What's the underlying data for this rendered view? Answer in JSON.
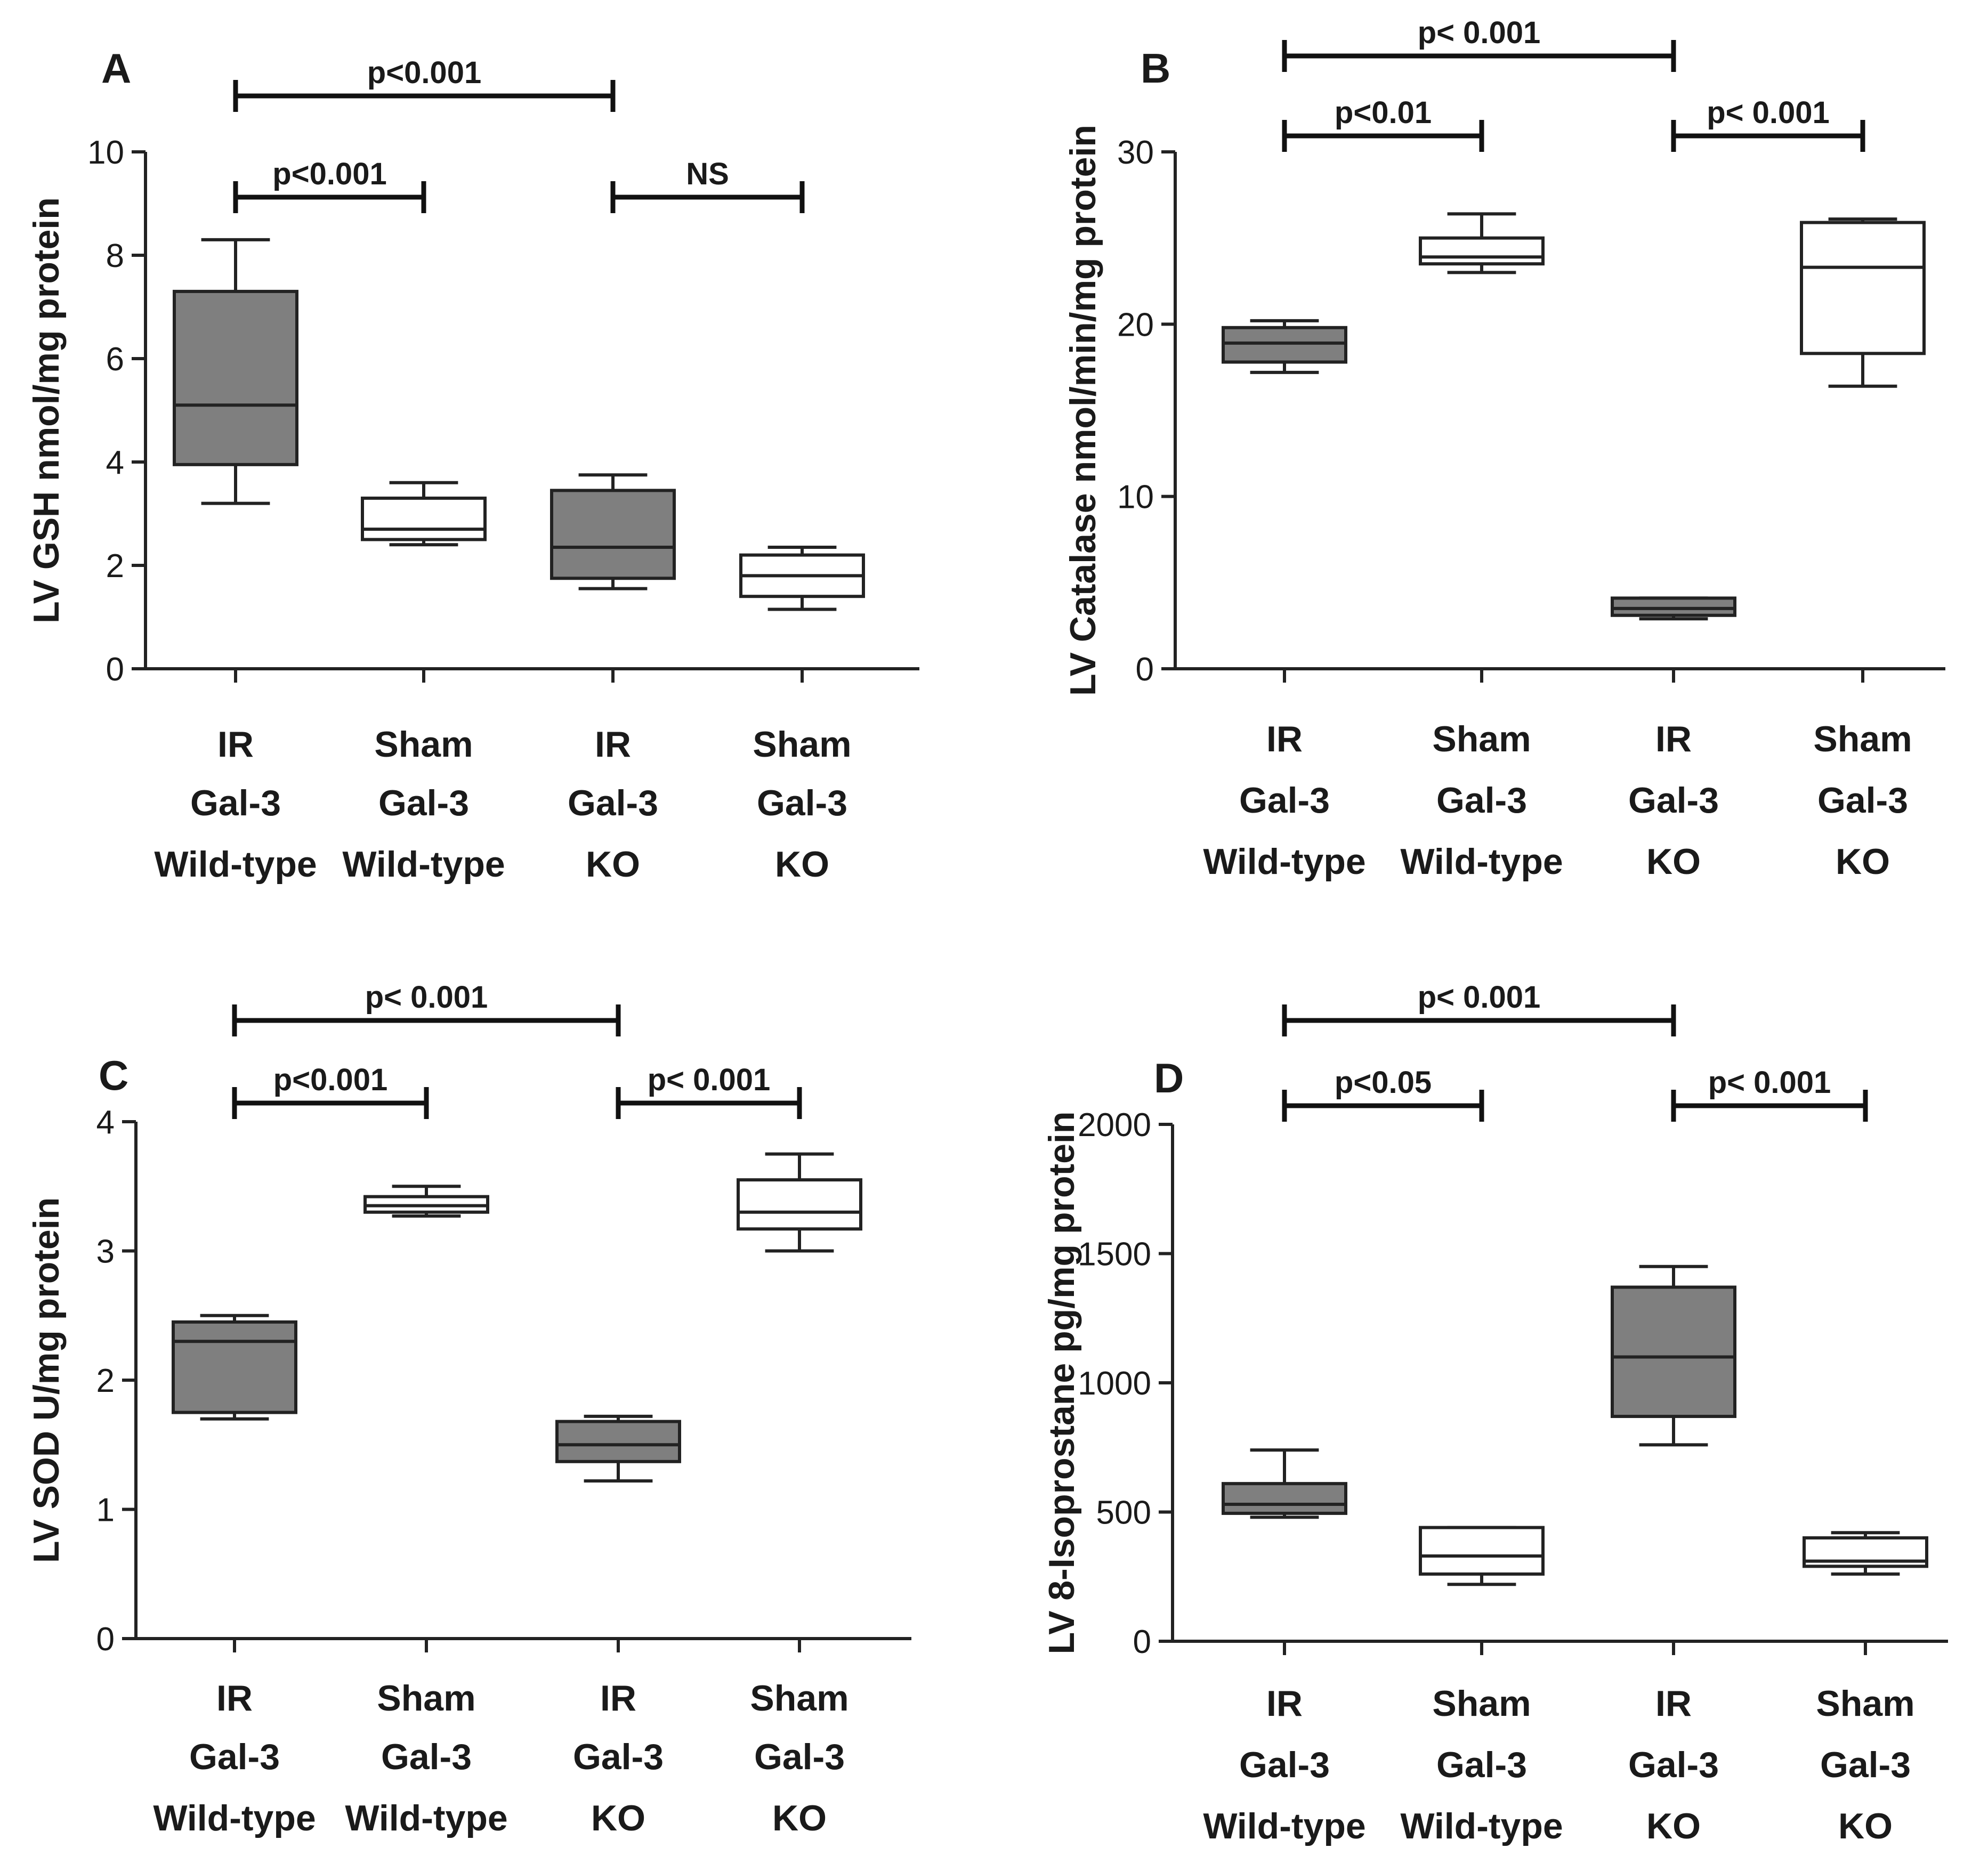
{
  "chart_data": [
    {
      "type": "boxplot",
      "panel_label": "A",
      "ylabel": "LV GSH nmol/mg protein",
      "ylim": [
        0,
        10
      ],
      "yticks": [
        0,
        2,
        4,
        6,
        8,
        10
      ],
      "groups": [
        {
          "label_lines": [
            "IR",
            "Gal-3",
            "Wild-type"
          ],
          "fill": "#7f7f7f",
          "min": 3.2,
          "q1": 3.95,
          "median": 5.1,
          "q3": 7.3,
          "max": 8.3
        },
        {
          "label_lines": [
            "Sham",
            "Gal-3",
            "Wild-type"
          ],
          "fill": "#ffffff",
          "min": 2.4,
          "q1": 2.5,
          "median": 2.7,
          "q3": 3.3,
          "max": 3.6
        },
        {
          "label_lines": [
            "IR",
            "Gal-3",
            "KO"
          ],
          "fill": "#7f7f7f",
          "min": 1.55,
          "q1": 1.75,
          "median": 2.35,
          "q3": 3.45,
          "max": 3.75
        },
        {
          "label_lines": [
            "Sham",
            "Gal-3",
            "KO"
          ],
          "fill": "#ffffff",
          "min": 1.15,
          "q1": 1.4,
          "median": 1.8,
          "q3": 2.2,
          "max": 2.35
        }
      ],
      "comparisons": [
        {
          "groups": [
            0,
            2
          ],
          "text": "p<0.001",
          "level": 2
        },
        {
          "groups": [
            0,
            1
          ],
          "text": "p<0.001",
          "level": 1
        },
        {
          "groups": [
            2,
            3
          ],
          "text": "NS",
          "level": 1
        }
      ]
    },
    {
      "type": "boxplot",
      "panel_label": "B",
      "ylabel": "LV Catalase nmol/min/mg protein",
      "ylim": [
        0,
        30
      ],
      "yticks": [
        0,
        10,
        20,
        30
      ],
      "groups": [
        {
          "label_lines": [
            "IR",
            "Gal-3",
            "Wild-type"
          ],
          "fill": "#7f7f7f",
          "min": 17.2,
          "q1": 17.8,
          "median": 18.9,
          "q3": 19.8,
          "max": 20.2
        },
        {
          "label_lines": [
            "Sham",
            "Gal-3",
            "Wild-type"
          ],
          "fill": "#ffffff",
          "min": 23.0,
          "q1": 23.5,
          "median": 23.9,
          "q3": 25.0,
          "max": 26.4
        },
        {
          "label_lines": [
            "IR",
            "Gal-3",
            "KO"
          ],
          "fill": "#7f7f7f",
          "min": 2.9,
          "q1": 3.1,
          "median": 3.5,
          "q3": 4.1,
          "max": 4.1
        },
        {
          "label_lines": [
            "Sham",
            "Gal-3",
            "KO"
          ],
          "fill": "#ffffff",
          "min": 16.4,
          "q1": 18.3,
          "median": 23.3,
          "q3": 25.9,
          "max": 26.1
        }
      ],
      "comparisons": [
        {
          "groups": [
            0,
            2
          ],
          "text": "p< 0.001",
          "level": 2
        },
        {
          "groups": [
            0,
            1
          ],
          "text": "p<0.01",
          "level": 1
        },
        {
          "groups": [
            2,
            3
          ],
          "text": "p< 0.001",
          "level": 1
        }
      ]
    },
    {
      "type": "boxplot",
      "panel_label": "C",
      "ylabel": "LV SOD U/mg protein",
      "ylim": [
        0,
        4
      ],
      "yticks": [
        0,
        1,
        2,
        3,
        4
      ],
      "groups": [
        {
          "label_lines": [
            "IR",
            "Gal-3",
            "Wild-type"
          ],
          "fill": "#7f7f7f",
          "min": 1.7,
          "q1": 1.75,
          "median": 2.3,
          "q3": 2.45,
          "max": 2.5
        },
        {
          "label_lines": [
            "Sham",
            "Gal-3",
            "Wild-type"
          ],
          "fill": "#ffffff",
          "min": 3.27,
          "q1": 3.3,
          "median": 3.35,
          "q3": 3.42,
          "max": 3.5
        },
        {
          "label_lines": [
            "IR",
            "Gal-3",
            "KO"
          ],
          "fill": "#7f7f7f",
          "min": 1.22,
          "q1": 1.37,
          "median": 1.5,
          "q3": 1.68,
          "max": 1.72
        },
        {
          "label_lines": [
            "Sham",
            "Gal-3",
            "KO"
          ],
          "fill": "#ffffff",
          "min": 3.0,
          "q1": 3.17,
          "median": 3.3,
          "q3": 3.55,
          "max": 3.75
        }
      ],
      "comparisons": [
        {
          "groups": [
            0,
            2
          ],
          "text": "p< 0.001",
          "level": 2
        },
        {
          "groups": [
            0,
            1
          ],
          "text": "p<0.001",
          "level": 1
        },
        {
          "groups": [
            2,
            3
          ],
          "text": "p< 0.001",
          "level": 1
        }
      ]
    },
    {
      "type": "boxplot",
      "panel_label": "D",
      "ylabel": "LV 8-Isoprostane pg/mg protein",
      "ylim": [
        0,
        2000
      ],
      "yticks": [
        0,
        500,
        1000,
        1500,
        2000
      ],
      "groups": [
        {
          "label_lines": [
            "IR",
            "Gal-3",
            "Wild-type"
          ],
          "fill": "#7f7f7f",
          "min": 480,
          "q1": 495,
          "median": 530,
          "q3": 610,
          "max": 740
        },
        {
          "label_lines": [
            "Sham",
            "Gal-3",
            "Wild-type"
          ],
          "fill": "#ffffff",
          "min": 220,
          "q1": 260,
          "median": 330,
          "q3": 440,
          "max": 440
        },
        {
          "label_lines": [
            "IR",
            "Gal-3",
            "KO"
          ],
          "fill": "#7f7f7f",
          "min": 760,
          "q1": 870,
          "median": 1100,
          "q3": 1370,
          "max": 1450
        },
        {
          "label_lines": [
            "Sham",
            "Gal-3",
            "KO"
          ],
          "fill": "#ffffff",
          "min": 260,
          "q1": 290,
          "median": 310,
          "q3": 400,
          "max": 420
        }
      ],
      "comparisons": [
        {
          "groups": [
            0,
            2
          ],
          "text": "p< 0.001",
          "level": 2
        },
        {
          "groups": [
            0,
            1
          ],
          "text": "p<0.05",
          "level": 1
        },
        {
          "groups": [
            2,
            3
          ],
          "text": "p< 0.001",
          "level": 1
        }
      ]
    }
  ]
}
